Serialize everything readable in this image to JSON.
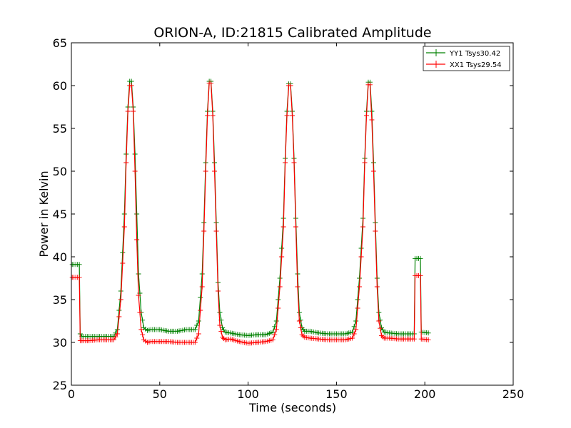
{
  "chart_data": {
    "type": "line",
    "title": "ORION-A, ID:21815 Calibrated Amplitude",
    "xlabel": "Time (seconds)",
    "ylabel": "Power in Kelvin",
    "xlim": [
      0,
      250
    ],
    "ylim": [
      25,
      65
    ],
    "xticks": [
      0,
      50,
      100,
      150,
      200,
      250
    ],
    "yticks": [
      25,
      30,
      35,
      40,
      45,
      50,
      55,
      60,
      65
    ],
    "grid": false,
    "legend_position": "top-right",
    "series": [
      {
        "name": "YY1 Tsys30.42",
        "color": "#008000",
        "marker": "+",
        "x": [
          0.5,
          4.5,
          5.0,
          6.0,
          10.0,
          15.0,
          20.0,
          24.0,
          26.0,
          28.0,
          30.0,
          31.0,
          32.0,
          33.0,
          34.0,
          35.0,
          36.0,
          37.0,
          38.0,
          39.5,
          41.0,
          43.0,
          45.0,
          50.0,
          55.0,
          60.0,
          65.0,
          70.0,
          72.0,
          74.0,
          75.0,
          76.0,
          77.0,
          78.0,
          79.0,
          80.0,
          81.0,
          82.0,
          83.0,
          84.0,
          85.5,
          87.0,
          90.0,
          95.0,
          100.0,
          105.0,
          110.0,
          114.0,
          116.0,
          118.0,
          120.0,
          121.0,
          122.0,
          123.0,
          124.0,
          125.0,
          126.0,
          127.0,
          128.0,
          129.0,
          130.5,
          132.0,
          135.0,
          140.0,
          145.0,
          150.0,
          155.0,
          159.0,
          161.0,
          163.0,
          165.0,
          166.0,
          167.0,
          168.0,
          169.0,
          170.0,
          171.0,
          172.0,
          173.0,
          174.0,
          175.5,
          177.0,
          180.0,
          185.0,
          190.0,
          194.0,
          194.5,
          197.5,
          198.0,
          202.0
        ],
        "y": [
          39.1,
          39.1,
          31.0,
          30.7,
          30.7,
          30.7,
          30.7,
          30.7,
          31.5,
          36.0,
          45.0,
          52.0,
          57.5,
          60.5,
          60.5,
          57.5,
          52.0,
          45.0,
          38.0,
          33.5,
          31.7,
          31.4,
          31.5,
          31.5,
          31.3,
          31.3,
          31.5,
          31.5,
          32.5,
          38.0,
          44.0,
          51.0,
          57.0,
          60.5,
          60.5,
          57.0,
          51.0,
          44.0,
          37.0,
          33.5,
          31.7,
          31.2,
          31.1,
          30.9,
          30.8,
          30.9,
          30.9,
          31.2,
          32.5,
          37.5,
          44.5,
          51.5,
          57.0,
          60.2,
          60.2,
          57.0,
          51.5,
          44.5,
          38.0,
          33.5,
          31.7,
          31.3,
          31.3,
          31.1,
          31.0,
          31.0,
          31.0,
          31.2,
          32.5,
          37.5,
          44.5,
          51.5,
          57.0,
          60.4,
          60.4,
          57.0,
          51.0,
          44.0,
          37.5,
          33.5,
          31.7,
          31.2,
          31.1,
          31.0,
          31.0,
          31.0,
          39.8,
          39.8,
          31.2,
          31.1
        ]
      },
      {
        "name": "XX1 Tsys29.54",
        "color": "#ff0000",
        "marker": "+",
        "x": [
          0.5,
          4.5,
          5.0,
          6.0,
          10.0,
          15.0,
          20.0,
          24.0,
          26.0,
          28.0,
          30.0,
          31.0,
          32.0,
          33.0,
          34.0,
          35.0,
          36.0,
          37.0,
          38.0,
          39.5,
          41.0,
          43.0,
          45.0,
          50.0,
          55.0,
          60.0,
          65.0,
          70.0,
          72.0,
          74.0,
          75.0,
          76.0,
          77.0,
          78.0,
          79.0,
          80.0,
          81.0,
          82.0,
          83.0,
          84.0,
          85.5,
          87.0,
          90.0,
          95.0,
          100.0,
          105.0,
          110.0,
          114.0,
          116.0,
          118.0,
          120.0,
          121.0,
          122.0,
          123.0,
          124.0,
          125.0,
          126.0,
          127.0,
          128.0,
          129.0,
          130.5,
          132.0,
          135.0,
          140.0,
          145.0,
          150.0,
          155.0,
          159.0,
          161.0,
          163.0,
          165.0,
          166.0,
          167.0,
          168.0,
          169.0,
          170.0,
          171.0,
          172.0,
          173.0,
          174.0,
          175.5,
          177.0,
          180.0,
          185.0,
          190.0,
          194.0,
          194.5,
          197.5,
          198.0,
          202.0
        ],
        "y": [
          37.6,
          37.6,
          30.2,
          30.2,
          30.2,
          30.3,
          30.3,
          30.3,
          31.0,
          35.0,
          43.5,
          51.0,
          57.0,
          60.0,
          60.0,
          57.0,
          50.0,
          42.0,
          35.5,
          31.5,
          30.3,
          30.0,
          30.1,
          30.1,
          30.1,
          30.0,
          30.0,
          30.0,
          31.0,
          36.5,
          43.0,
          50.0,
          56.5,
          60.3,
          60.3,
          56.5,
          50.0,
          43.0,
          36.0,
          32.0,
          30.6,
          30.3,
          30.4,
          30.1,
          29.9,
          30.0,
          30.1,
          30.3,
          31.5,
          36.5,
          43.5,
          51.0,
          56.5,
          60.0,
          60.0,
          56.5,
          51.0,
          43.5,
          36.5,
          32.5,
          30.9,
          30.6,
          30.5,
          30.4,
          30.3,
          30.3,
          30.3,
          30.5,
          31.5,
          36.5,
          43.5,
          51.0,
          56.5,
          60.1,
          60.1,
          56.0,
          50.0,
          43.0,
          36.5,
          32.5,
          30.8,
          30.5,
          30.5,
          30.4,
          30.4,
          30.4,
          37.8,
          37.8,
          30.4,
          30.3
        ]
      }
    ]
  }
}
